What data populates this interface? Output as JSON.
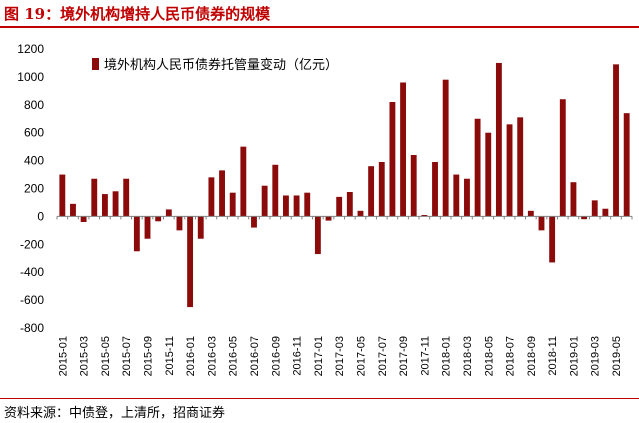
{
  "header": {
    "title": "图 19：境外机构增持人民币债券的规模"
  },
  "footer": {
    "source": "资料来源：中债登，上清所，招商证券"
  },
  "colors": {
    "bar": "#8b0a0a",
    "accent": "#c00000"
  },
  "chart_data": {
    "type": "bar",
    "title": "",
    "xlabel": "",
    "ylabel": "",
    "ylim": [
      -800,
      1200
    ],
    "yticks": [
      -800,
      -600,
      -400,
      -200,
      0,
      200,
      400,
      600,
      800,
      1000,
      1200
    ],
    "grid": false,
    "legend_position": "top-left",
    "x_tick_labels": [
      "2015-01",
      "2015-03",
      "2015-05",
      "2015-07",
      "2015-09",
      "2015-11",
      "2016-01",
      "2016-03",
      "2016-05",
      "2016-07",
      "2016-09",
      "2016-11",
      "2017-01",
      "2017-03",
      "2017-05",
      "2017-07",
      "2017-09",
      "2017-11",
      "2018-01",
      "2018-03",
      "2018-05",
      "2018-07",
      "2018-09",
      "2018-11",
      "2019-01",
      "2019-03",
      "2019-05"
    ],
    "categories": [
      "2015-01",
      "2015-02",
      "2015-03",
      "2015-04",
      "2015-05",
      "2015-06",
      "2015-07",
      "2015-08",
      "2015-09",
      "2015-10",
      "2015-11",
      "2015-12",
      "2016-01",
      "2016-02",
      "2016-03",
      "2016-04",
      "2016-05",
      "2016-06",
      "2016-07",
      "2016-08",
      "2016-09",
      "2016-10",
      "2016-11",
      "2016-12",
      "2017-01",
      "2017-02",
      "2017-03",
      "2017-04",
      "2017-05",
      "2017-06",
      "2017-07",
      "2017-08",
      "2017-09",
      "2017-10",
      "2017-11",
      "2017-12",
      "2018-01",
      "2018-02",
      "2018-03",
      "2018-04",
      "2018-05",
      "2018-06",
      "2018-07",
      "2018-08",
      "2018-09",
      "2018-10",
      "2018-11",
      "2018-12",
      "2019-01",
      "2019-02",
      "2019-03",
      "2019-04",
      "2019-05",
      "2019-06"
    ],
    "series": [
      {
        "name": "境外机构人民币债券托管量变动（亿元）",
        "values": [
          300,
          90,
          -40,
          270,
          160,
          180,
          270,
          -250,
          -160,
          -35,
          50,
          -100,
          -650,
          -160,
          280,
          330,
          170,
          500,
          -80,
          220,
          370,
          150,
          150,
          170,
          -270,
          -30,
          140,
          175,
          40,
          360,
          390,
          820,
          960,
          440,
          10,
          390,
          980,
          300,
          270,
          700,
          600,
          1100,
          660,
          710,
          40,
          -100,
          -330,
          840,
          245,
          -20,
          115,
          55,
          1090,
          740
        ]
      }
    ]
  }
}
